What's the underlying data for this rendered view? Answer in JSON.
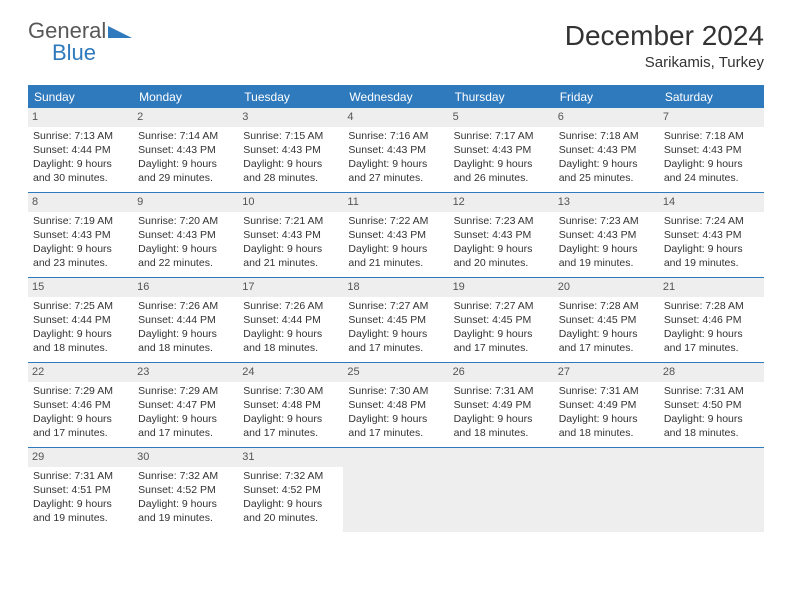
{
  "logo": {
    "general": "General",
    "blue": "Blue",
    "shape_color": "#2f79bd"
  },
  "header": {
    "month": "December 2024",
    "location": "Sarikamis, Turkey"
  },
  "calendar": {
    "dow_bg": "#2f79bd",
    "dow_color": "#ffffff",
    "daynum_bg": "#eeeeee",
    "rule_color": "#2f79bd",
    "text_color": "#333333",
    "font_size_body": 10.5,
    "dows": [
      "Sunday",
      "Monday",
      "Tuesday",
      "Wednesday",
      "Thursday",
      "Friday",
      "Saturday"
    ],
    "weeks": [
      [
        {
          "num": "1",
          "sunrise": "Sunrise: 7:13 AM",
          "sunset": "Sunset: 4:44 PM",
          "day1": "Daylight: 9 hours",
          "day2": "and 30 minutes."
        },
        {
          "num": "2",
          "sunrise": "Sunrise: 7:14 AM",
          "sunset": "Sunset: 4:43 PM",
          "day1": "Daylight: 9 hours",
          "day2": "and 29 minutes."
        },
        {
          "num": "3",
          "sunrise": "Sunrise: 7:15 AM",
          "sunset": "Sunset: 4:43 PM",
          "day1": "Daylight: 9 hours",
          "day2": "and 28 minutes."
        },
        {
          "num": "4",
          "sunrise": "Sunrise: 7:16 AM",
          "sunset": "Sunset: 4:43 PM",
          "day1": "Daylight: 9 hours",
          "day2": "and 27 minutes."
        },
        {
          "num": "5",
          "sunrise": "Sunrise: 7:17 AM",
          "sunset": "Sunset: 4:43 PM",
          "day1": "Daylight: 9 hours",
          "day2": "and 26 minutes."
        },
        {
          "num": "6",
          "sunrise": "Sunrise: 7:18 AM",
          "sunset": "Sunset: 4:43 PM",
          "day1": "Daylight: 9 hours",
          "day2": "and 25 minutes."
        },
        {
          "num": "7",
          "sunrise": "Sunrise: 7:18 AM",
          "sunset": "Sunset: 4:43 PM",
          "day1": "Daylight: 9 hours",
          "day2": "and 24 minutes."
        }
      ],
      [
        {
          "num": "8",
          "sunrise": "Sunrise: 7:19 AM",
          "sunset": "Sunset: 4:43 PM",
          "day1": "Daylight: 9 hours",
          "day2": "and 23 minutes."
        },
        {
          "num": "9",
          "sunrise": "Sunrise: 7:20 AM",
          "sunset": "Sunset: 4:43 PM",
          "day1": "Daylight: 9 hours",
          "day2": "and 22 minutes."
        },
        {
          "num": "10",
          "sunrise": "Sunrise: 7:21 AM",
          "sunset": "Sunset: 4:43 PM",
          "day1": "Daylight: 9 hours",
          "day2": "and 21 minutes."
        },
        {
          "num": "11",
          "sunrise": "Sunrise: 7:22 AM",
          "sunset": "Sunset: 4:43 PM",
          "day1": "Daylight: 9 hours",
          "day2": "and 21 minutes."
        },
        {
          "num": "12",
          "sunrise": "Sunrise: 7:23 AM",
          "sunset": "Sunset: 4:43 PM",
          "day1": "Daylight: 9 hours",
          "day2": "and 20 minutes."
        },
        {
          "num": "13",
          "sunrise": "Sunrise: 7:23 AM",
          "sunset": "Sunset: 4:43 PM",
          "day1": "Daylight: 9 hours",
          "day2": "and 19 minutes."
        },
        {
          "num": "14",
          "sunrise": "Sunrise: 7:24 AM",
          "sunset": "Sunset: 4:43 PM",
          "day1": "Daylight: 9 hours",
          "day2": "and 19 minutes."
        }
      ],
      [
        {
          "num": "15",
          "sunrise": "Sunrise: 7:25 AM",
          "sunset": "Sunset: 4:44 PM",
          "day1": "Daylight: 9 hours",
          "day2": "and 18 minutes."
        },
        {
          "num": "16",
          "sunrise": "Sunrise: 7:26 AM",
          "sunset": "Sunset: 4:44 PM",
          "day1": "Daylight: 9 hours",
          "day2": "and 18 minutes."
        },
        {
          "num": "17",
          "sunrise": "Sunrise: 7:26 AM",
          "sunset": "Sunset: 4:44 PM",
          "day1": "Daylight: 9 hours",
          "day2": "and 18 minutes."
        },
        {
          "num": "18",
          "sunrise": "Sunrise: 7:27 AM",
          "sunset": "Sunset: 4:45 PM",
          "day1": "Daylight: 9 hours",
          "day2": "and 17 minutes."
        },
        {
          "num": "19",
          "sunrise": "Sunrise: 7:27 AM",
          "sunset": "Sunset: 4:45 PM",
          "day1": "Daylight: 9 hours",
          "day2": "and 17 minutes."
        },
        {
          "num": "20",
          "sunrise": "Sunrise: 7:28 AM",
          "sunset": "Sunset: 4:45 PM",
          "day1": "Daylight: 9 hours",
          "day2": "and 17 minutes."
        },
        {
          "num": "21",
          "sunrise": "Sunrise: 7:28 AM",
          "sunset": "Sunset: 4:46 PM",
          "day1": "Daylight: 9 hours",
          "day2": "and 17 minutes."
        }
      ],
      [
        {
          "num": "22",
          "sunrise": "Sunrise: 7:29 AM",
          "sunset": "Sunset: 4:46 PM",
          "day1": "Daylight: 9 hours",
          "day2": "and 17 minutes."
        },
        {
          "num": "23",
          "sunrise": "Sunrise: 7:29 AM",
          "sunset": "Sunset: 4:47 PM",
          "day1": "Daylight: 9 hours",
          "day2": "and 17 minutes."
        },
        {
          "num": "24",
          "sunrise": "Sunrise: 7:30 AM",
          "sunset": "Sunset: 4:48 PM",
          "day1": "Daylight: 9 hours",
          "day2": "and 17 minutes."
        },
        {
          "num": "25",
          "sunrise": "Sunrise: 7:30 AM",
          "sunset": "Sunset: 4:48 PM",
          "day1": "Daylight: 9 hours",
          "day2": "and 17 minutes."
        },
        {
          "num": "26",
          "sunrise": "Sunrise: 7:31 AM",
          "sunset": "Sunset: 4:49 PM",
          "day1": "Daylight: 9 hours",
          "day2": "and 18 minutes."
        },
        {
          "num": "27",
          "sunrise": "Sunrise: 7:31 AM",
          "sunset": "Sunset: 4:49 PM",
          "day1": "Daylight: 9 hours",
          "day2": "and 18 minutes."
        },
        {
          "num": "28",
          "sunrise": "Sunrise: 7:31 AM",
          "sunset": "Sunset: 4:50 PM",
          "day1": "Daylight: 9 hours",
          "day2": "and 18 minutes."
        }
      ],
      [
        {
          "num": "29",
          "sunrise": "Sunrise: 7:31 AM",
          "sunset": "Sunset: 4:51 PM",
          "day1": "Daylight: 9 hours",
          "day2": "and 19 minutes."
        },
        {
          "num": "30",
          "sunrise": "Sunrise: 7:32 AM",
          "sunset": "Sunset: 4:52 PM",
          "day1": "Daylight: 9 hours",
          "day2": "and 19 minutes."
        },
        {
          "num": "31",
          "sunrise": "Sunrise: 7:32 AM",
          "sunset": "Sunset: 4:52 PM",
          "day1": "Daylight: 9 hours",
          "day2": "and 20 minutes."
        },
        {
          "empty": true
        },
        {
          "empty": true
        },
        {
          "empty": true
        },
        {
          "empty": true
        }
      ]
    ]
  }
}
